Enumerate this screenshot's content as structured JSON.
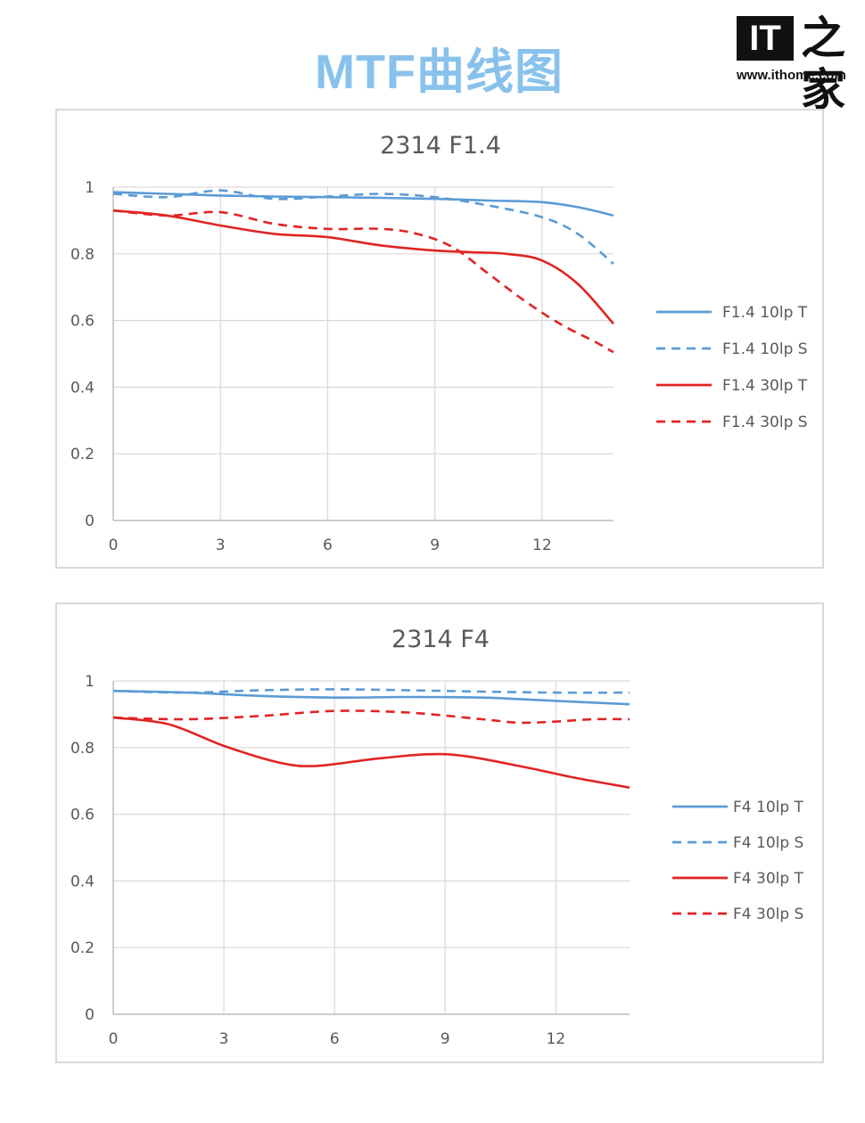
{
  "header": {
    "title": "MTF曲线图",
    "logo_mark": "IT",
    "logo_glyph": "之家",
    "logo_url": "www.ithome.com"
  },
  "colors": {
    "blue": "#5b9bd5",
    "red": "#e02424",
    "grid": "#d9d9d9",
    "title": "#88c2ec"
  },
  "chart_data": [
    {
      "type": "line",
      "title": "2314 F1.4",
      "xlabel": "",
      "ylabel": "",
      "xlim": [
        0,
        14
      ],
      "ylim": [
        0,
        1
      ],
      "xticks": [
        0,
        3,
        6,
        9,
        12
      ],
      "yticks": [
        0,
        0.2,
        0.4,
        0.6,
        0.8,
        1
      ],
      "ytick_labels": [
        "0",
        "0.2",
        "0.4",
        "0.6",
        "0.8",
        "1"
      ],
      "grid": true,
      "legend_position": "right",
      "series": [
        {
          "name": "F1.4 10lp T",
          "color": "#5b9bd5",
          "dash": false,
          "x": [
            0,
            1.5,
            3,
            4.5,
            6,
            7.5,
            9,
            10.5,
            12,
            13,
            14
          ],
          "y": [
            0.985,
            0.98,
            0.975,
            0.972,
            0.97,
            0.968,
            0.965,
            0.96,
            0.955,
            0.94,
            0.915
          ]
        },
        {
          "name": "F1.4 10lp S",
          "color": "#5b9bd5",
          "dash": true,
          "x": [
            0,
            1.5,
            3,
            4.5,
            6,
            7.5,
            9,
            10.5,
            12,
            13,
            14
          ],
          "y": [
            0.98,
            0.97,
            0.99,
            0.965,
            0.972,
            0.98,
            0.97,
            0.945,
            0.91,
            0.86,
            0.77
          ]
        },
        {
          "name": "F1.4 30lp T",
          "color": "#e02424",
          "dash": false,
          "x": [
            0,
            1.5,
            3,
            4.5,
            6,
            7.5,
            9,
            10,
            11,
            12,
            13,
            14
          ],
          "y": [
            0.93,
            0.915,
            0.885,
            0.86,
            0.85,
            0.825,
            0.81,
            0.805,
            0.8,
            0.78,
            0.71,
            0.59
          ]
        },
        {
          "name": "F1.4 30lp S",
          "color": "#e02424",
          "dash": true,
          "x": [
            0,
            1.5,
            3,
            4.5,
            6,
            7.5,
            8.5,
            9.5,
            10.5,
            11.5,
            12.5,
            13.5,
            14
          ],
          "y": [
            0.93,
            0.915,
            0.925,
            0.89,
            0.875,
            0.875,
            0.86,
            0.82,
            0.74,
            0.66,
            0.59,
            0.535,
            0.505
          ]
        }
      ]
    },
    {
      "type": "line",
      "title": "2314 F4",
      "xlabel": "",
      "ylabel": "",
      "xlim": [
        0,
        14
      ],
      "ylim": [
        0,
        1
      ],
      "xticks": [
        0,
        3,
        6,
        9,
        12
      ],
      "yticks": [
        0,
        0.2,
        0.4,
        0.6,
        0.8,
        1
      ],
      "ytick_labels": [
        "0",
        "0.2",
        "0.4",
        "0.6",
        "0.8",
        "1"
      ],
      "grid": true,
      "legend_position": "right",
      "series": [
        {
          "name": "F4 10lp T",
          "color": "#5b9bd5",
          "dash": false,
          "x": [
            0,
            2,
            4,
            6,
            8,
            10,
            12,
            14
          ],
          "y": [
            0.97,
            0.965,
            0.955,
            0.95,
            0.952,
            0.95,
            0.94,
            0.93
          ]
        },
        {
          "name": "F4 10lp S",
          "color": "#5b9bd5",
          "dash": true,
          "x": [
            0,
            2,
            4,
            6,
            8,
            10,
            12,
            14
          ],
          "y": [
            0.97,
            0.965,
            0.972,
            0.975,
            0.972,
            0.968,
            0.965,
            0.965
          ]
        },
        {
          "name": "F4 30lp T",
          "color": "#e02424",
          "dash": false,
          "x": [
            0,
            1.5,
            3,
            4.5,
            5.5,
            7,
            8.5,
            9.5,
            11,
            12.5,
            14
          ],
          "y": [
            0.89,
            0.87,
            0.805,
            0.755,
            0.745,
            0.765,
            0.78,
            0.775,
            0.745,
            0.71,
            0.68
          ]
        },
        {
          "name": "F4 30lp S",
          "color": "#e02424",
          "dash": true,
          "x": [
            0,
            2,
            4,
            6,
            8,
            10,
            11,
            12,
            13,
            14
          ],
          "y": [
            0.89,
            0.885,
            0.895,
            0.91,
            0.905,
            0.885,
            0.875,
            0.878,
            0.885,
            0.885
          ]
        }
      ]
    }
  ]
}
